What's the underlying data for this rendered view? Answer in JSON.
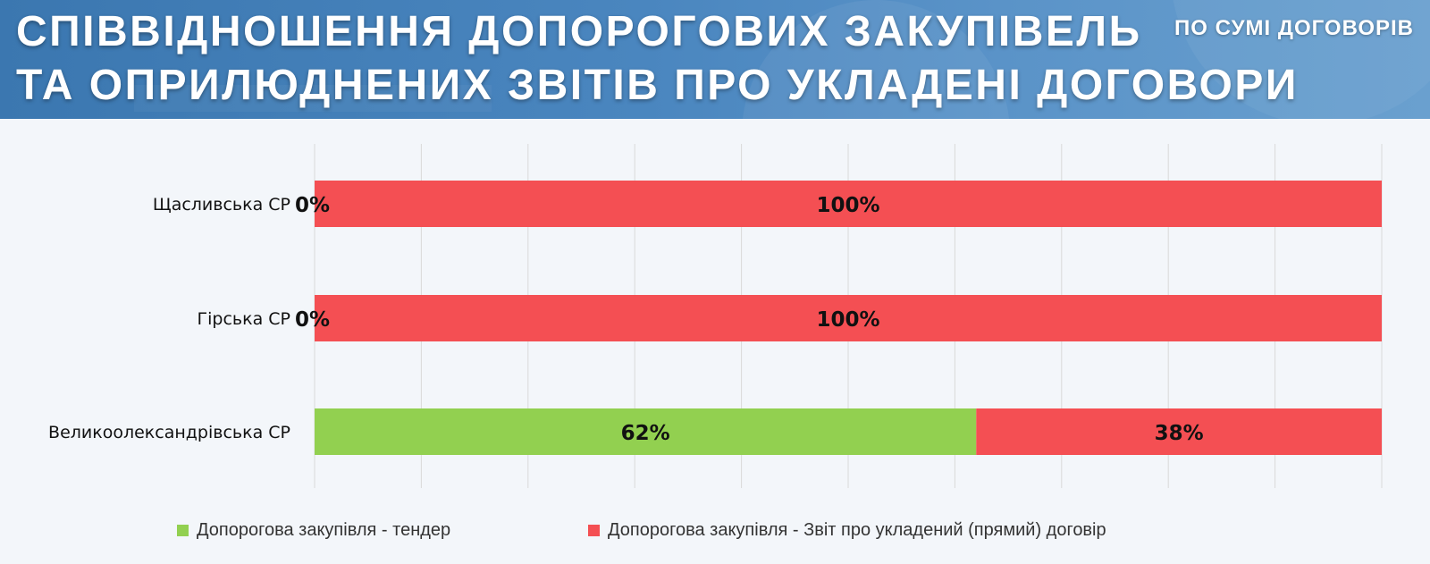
{
  "header": {
    "title_line1": "СПІВВІДНОШЕННЯ ДОПОРОГОВИХ ЗАКУПІВЕЛЬ",
    "title_line2": "ТА ОПРИЛЮДНЕНИХ ЗВІТІВ ПРО УКЛАДЕНІ ДОГОВОРИ",
    "subtitle": "ПО СУМІ ДОГОВОРІВ"
  },
  "colors": {
    "tender": "#92d050",
    "direct": "#f44f53",
    "banner": "#4a86bf"
  },
  "chart_data": {
    "type": "bar",
    "orientation": "horizontal",
    "stacked": true,
    "percent_stacked": true,
    "categories": [
      "Щасливська СР",
      "Гірська СР",
      "Великоолександрівська СР"
    ],
    "series": [
      {
        "name": "Допорогова  закупівля - тендер",
        "values": [
          0,
          0,
          62
        ],
        "labels": [
          "0%",
          "0%",
          "62%"
        ]
      },
      {
        "name": "Допорогова  закупівля - Звіт про  укладений  (прямий)  договір",
        "values": [
          100,
          100,
          38
        ],
        "labels": [
          "100%",
          "100%",
          "38%"
        ]
      }
    ],
    "xlim": [
      0,
      100
    ],
    "grid": true,
    "legend_position": "bottom"
  }
}
